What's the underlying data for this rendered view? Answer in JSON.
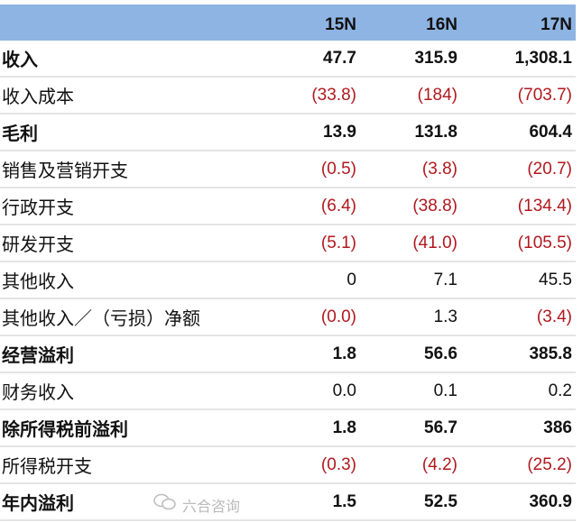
{
  "header": {
    "columns": [
      "",
      "15N",
      "16N",
      "17N"
    ]
  },
  "rows": [
    {
      "label": "收入",
      "bold": true,
      "values": [
        "47.7",
        "315.9",
        "1,308.1"
      ]
    },
    {
      "label": "收入成本",
      "bold": false,
      "values": [
        "(33.8)",
        "(184)",
        "(703.7)"
      ]
    },
    {
      "label": "毛利",
      "bold": true,
      "values": [
        "13.9",
        "131.8",
        "604.4"
      ]
    },
    {
      "label": "销售及营销开支",
      "bold": false,
      "values": [
        "(0.5)",
        "(3.8)",
        "(20.7)"
      ]
    },
    {
      "label": "行政开支",
      "bold": false,
      "values": [
        "(6.4)",
        "(38.8)",
        "(134.4)"
      ]
    },
    {
      "label": "研发开支",
      "bold": false,
      "values": [
        "(5.1)",
        "(41.0)",
        "(105.5)"
      ]
    },
    {
      "label": "其他收入",
      "bold": false,
      "values": [
        "0",
        "7.1",
        "45.5"
      ]
    },
    {
      "label": "其他收入／（亏损）净额",
      "bold": false,
      "values": [
        "(0.0)",
        "1.3",
        "(3.4)"
      ]
    },
    {
      "label": "经营溢利",
      "bold": true,
      "values": [
        "1.8",
        "56.6",
        "385.8"
      ]
    },
    {
      "label": "财务收入",
      "bold": false,
      "values": [
        "0.0",
        "0.1",
        "0.2"
      ]
    },
    {
      "label": "除所得税前溢利",
      "bold": true,
      "values": [
        "1.8",
        "56.7",
        "386"
      ]
    },
    {
      "label": "所得税开支",
      "bold": false,
      "values": [
        "(0.3)",
        "(4.2)",
        "(25.2)"
      ]
    },
    {
      "label": "年内溢利",
      "bold": true,
      "values": [
        "1.5",
        "52.5",
        "360.9"
      ]
    }
  ],
  "colors": {
    "header_bg": "#8eb4e3",
    "negative": "#b0181e"
  },
  "watermark": {
    "icon": "wechat-icon",
    "text": "六合咨询"
  }
}
